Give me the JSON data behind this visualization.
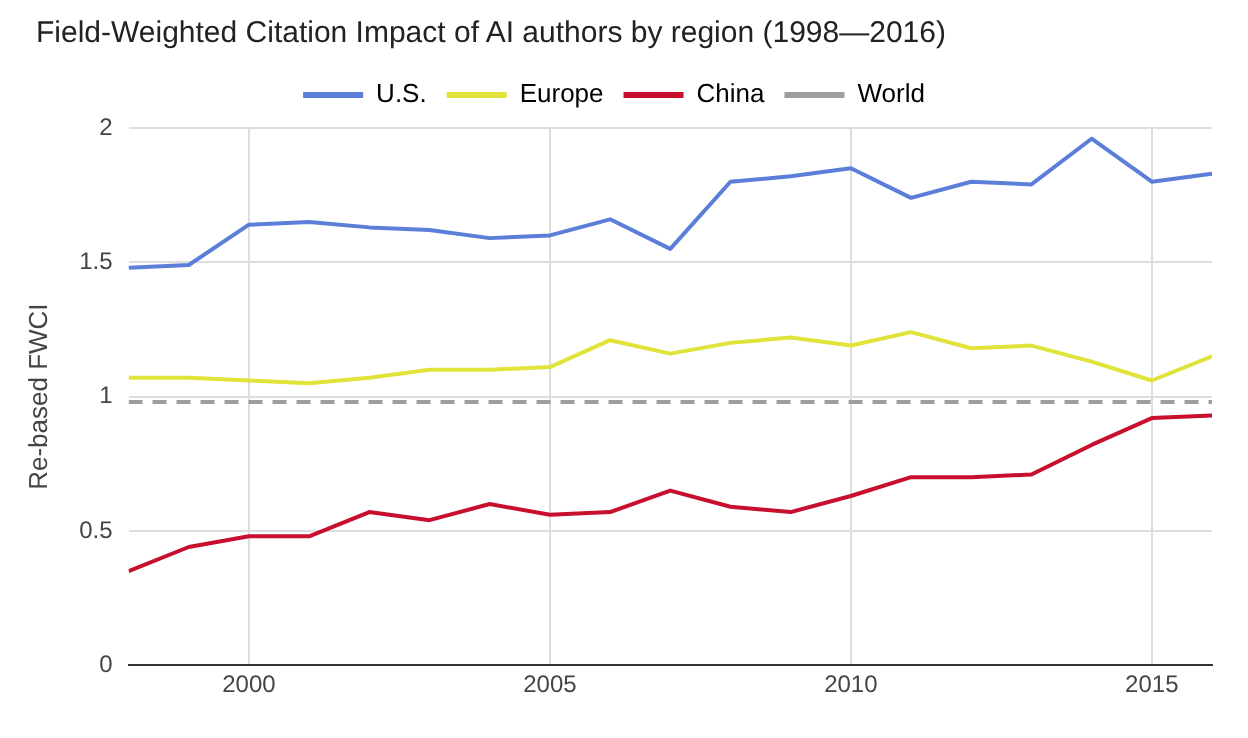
{
  "chart_data": {
    "type": "line",
    "title": "Field-Weighted Citation Impact of AI authors by region (1998—2016)",
    "ylabel": "Re-based FWCI",
    "x": [
      1998,
      1999,
      2000,
      2001,
      2002,
      2003,
      2004,
      2005,
      2006,
      2007,
      2008,
      2009,
      2010,
      2011,
      2012,
      2013,
      2014,
      2015,
      2016
    ],
    "series": [
      {
        "name": "U.S.",
        "color": "#5b7fd8",
        "values": [
          1.48,
          1.49,
          1.64,
          1.65,
          1.63,
          1.62,
          1.59,
          1.6,
          1.66,
          1.55,
          1.8,
          1.82,
          1.85,
          1.74,
          1.8,
          1.79,
          1.96,
          1.8,
          1.83
        ]
      },
      {
        "name": "Europe",
        "color": "#e0e33a",
        "values": [
          1.07,
          1.07,
          1.06,
          1.05,
          1.07,
          1.1,
          1.1,
          1.11,
          1.21,
          1.16,
          1.2,
          1.22,
          1.19,
          1.24,
          1.18,
          1.19,
          1.13,
          1.06,
          1.15
        ]
      },
      {
        "name": "China",
        "color": "#c8102e",
        "values": [
          0.35,
          0.44,
          0.48,
          0.48,
          0.57,
          0.54,
          0.6,
          0.56,
          0.57,
          0.65,
          0.59,
          0.57,
          0.63,
          0.7,
          0.7,
          0.71,
          0.82,
          0.92,
          0.93
        ]
      },
      {
        "name": "World",
        "color": "#9e9e9e",
        "line_style": "dashed",
        "values": [
          0.98,
          0.98,
          0.98,
          0.98,
          0.98,
          0.98,
          0.98,
          0.98,
          0.98,
          0.98,
          0.98,
          0.98,
          0.98,
          0.98,
          0.98,
          0.98,
          0.98,
          0.98,
          0.98
        ]
      }
    ],
    "xlim": [
      1998,
      2016
    ],
    "xticks": [
      2000,
      2005,
      2010,
      2015
    ],
    "ylim": [
      0,
      2
    ],
    "yticks": [
      0,
      0.5,
      1,
      1.5,
      2
    ],
    "grid": true,
    "legend": "top",
    "marker": "none",
    "line_style": "solid"
  }
}
